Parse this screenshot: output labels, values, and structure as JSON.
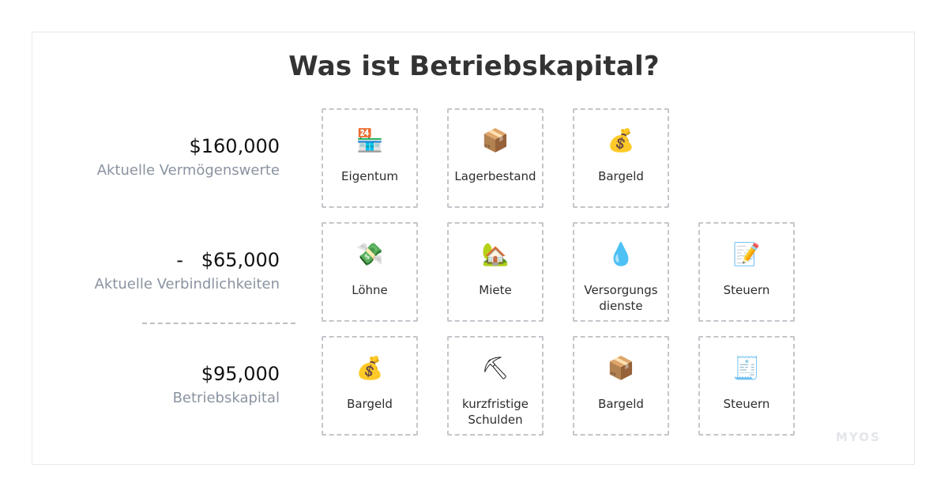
{
  "title": "Was ist Betriebskapital?",
  "rows": [
    {
      "amount": "$160,000",
      "caption": "Aktuelle Vermögenswerte",
      "cards": [
        {
          "label": "Eigentum",
          "icon": "convenience-store-icon",
          "glyph": "🏪"
        },
        {
          "label": "Lagerbestand",
          "icon": "package-icon",
          "glyph": "📦"
        },
        {
          "label": "Bargeld",
          "icon": "money-bag-icon",
          "glyph": "💰"
        }
      ]
    },
    {
      "amount": "-   $65,000",
      "caption": "Aktuelle Verbindlichkeiten",
      "cards": [
        {
          "label": "Löhne",
          "icon": "money-with-wings-icon",
          "glyph": "💸"
        },
        {
          "label": "Miete",
          "icon": "house-with-garden-icon",
          "glyph": "🏡"
        },
        {
          "label": "Versorgungs\ndienste",
          "icon": "droplet-icon",
          "glyph": "💧"
        },
        {
          "label": "Steuern",
          "icon": "memo-icon",
          "glyph": "📝"
        }
      ]
    },
    {
      "amount": "$95,000",
      "caption": "Betriebskapital",
      "cards": [
        {
          "label": "Bargeld",
          "icon": "money-bag-icon",
          "glyph": "💰"
        },
        {
          "label": "kurzfristige\nSchulden",
          "icon": "pick-icon",
          "glyph": "⛏"
        },
        {
          "label": "Bargeld",
          "icon": "package-icon",
          "glyph": "📦"
        },
        {
          "label": "Steuern",
          "icon": "receipt-icon",
          "glyph": "🧾"
        }
      ]
    }
  ],
  "logo": "MYOS",
  "colors": {
    "caption": "#8a93a0",
    "card_border": "#c3c6cb",
    "title": "#333333"
  }
}
